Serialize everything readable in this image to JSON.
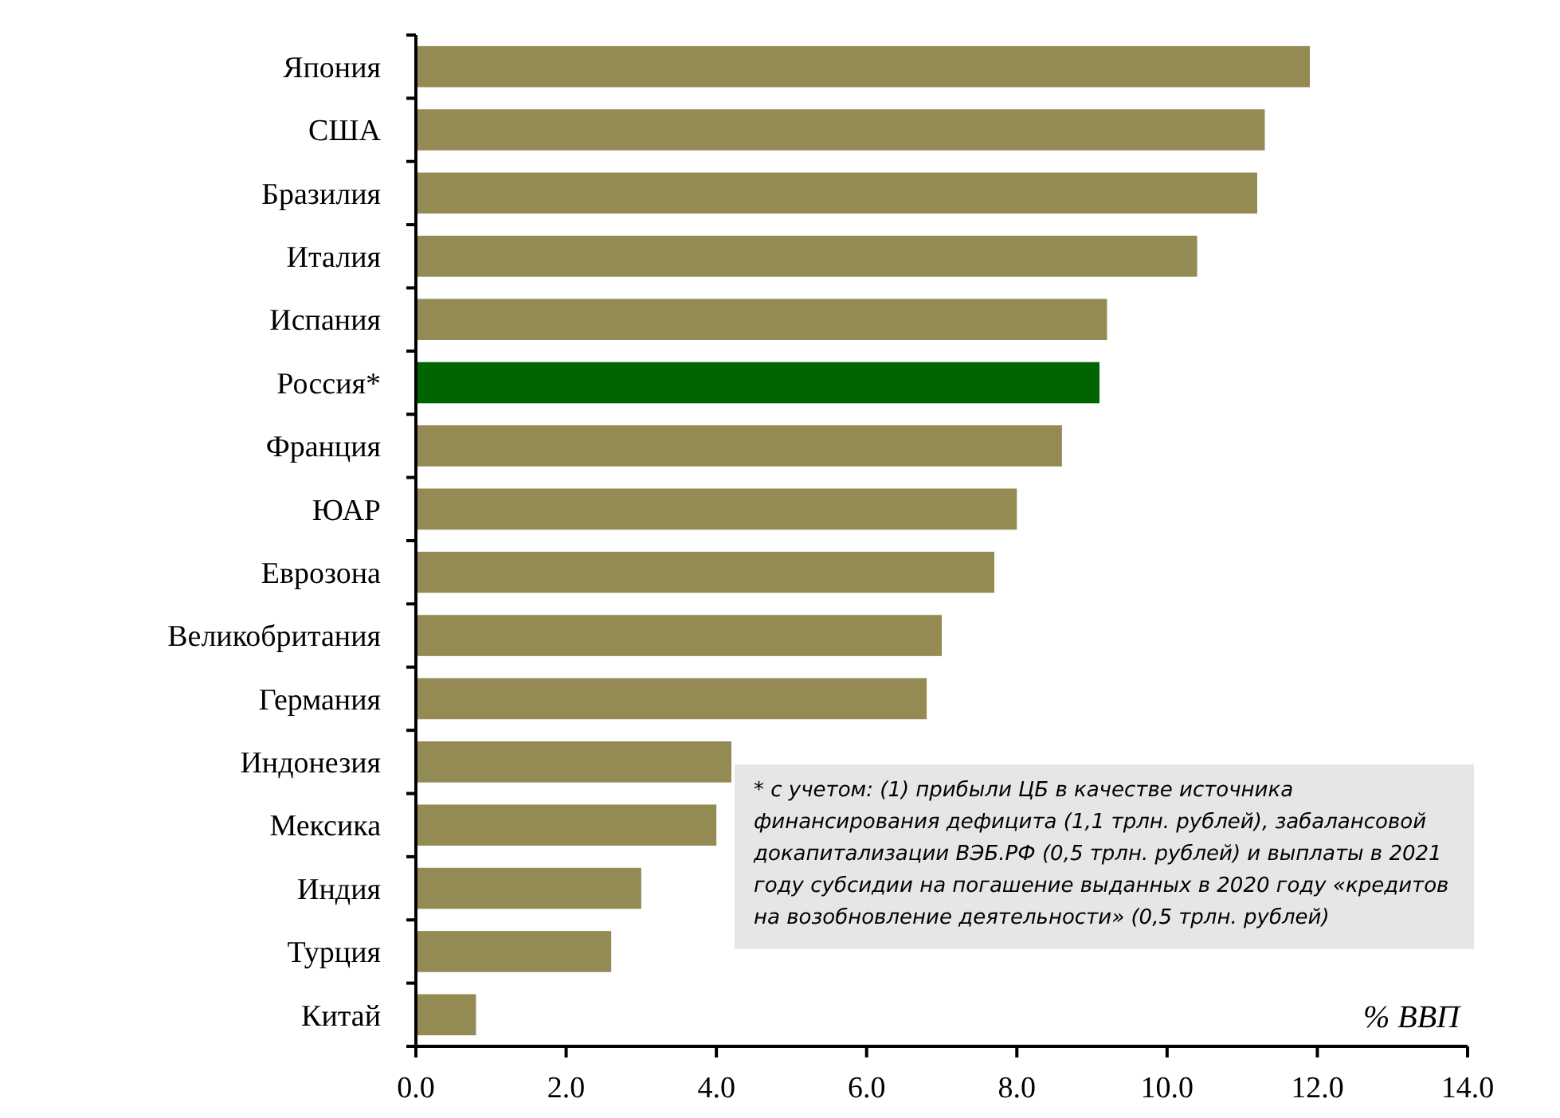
{
  "chart_data": {
    "type": "bar",
    "orientation": "horizontal",
    "categories": [
      "Япония",
      "США",
      "Бразилия",
      "Италия",
      "Испания",
      "Россия*",
      "Франция",
      "ЮАР",
      "Еврозона",
      "Великобритания",
      "Германия",
      "Индонезия",
      "Мексика",
      "Индия",
      "Турция",
      "Китай"
    ],
    "values": [
      11.9,
      11.3,
      11.2,
      10.4,
      9.2,
      9.1,
      8.6,
      8.0,
      7.7,
      7.0,
      6.8,
      4.2,
      4.0,
      3.0,
      2.6,
      0.8
    ],
    "colors": [
      "#948a54",
      "#948a54",
      "#948a54",
      "#948a54",
      "#948a54",
      "#006400",
      "#948a54",
      "#948a54",
      "#948a54",
      "#948a54",
      "#948a54",
      "#948a54",
      "#948a54",
      "#948a54",
      "#948a54",
      "#948a54"
    ],
    "xlim": [
      0,
      14
    ],
    "xticks": [
      {
        "value": 0,
        "label": "0.0"
      },
      {
        "value": 2,
        "label": "2.0"
      },
      {
        "value": 4,
        "label": "4.0"
      },
      {
        "value": 6,
        "label": "6.0"
      },
      {
        "value": 8,
        "label": "8.0"
      },
      {
        "value": 10,
        "label": "10.0"
      },
      {
        "value": 12,
        "label": "12.0"
      },
      {
        "value": 14,
        "label": "14.0"
      }
    ],
    "xlabel": "% ВВП",
    "annotations": [
      "* с учетом: (1) прибыли ЦБ в качестве источника финансирования дефицита (1,1 трлн. рублей), забалансовой докапитализации ВЭБ.РФ (0,5 трлн. рублей) и выплаты в 2021 году субсидии на погашение выданных в 2020 году «кредитов на возобновление деятельности» (0,5 трлн. рублей)"
    ],
    "grid": false
  }
}
